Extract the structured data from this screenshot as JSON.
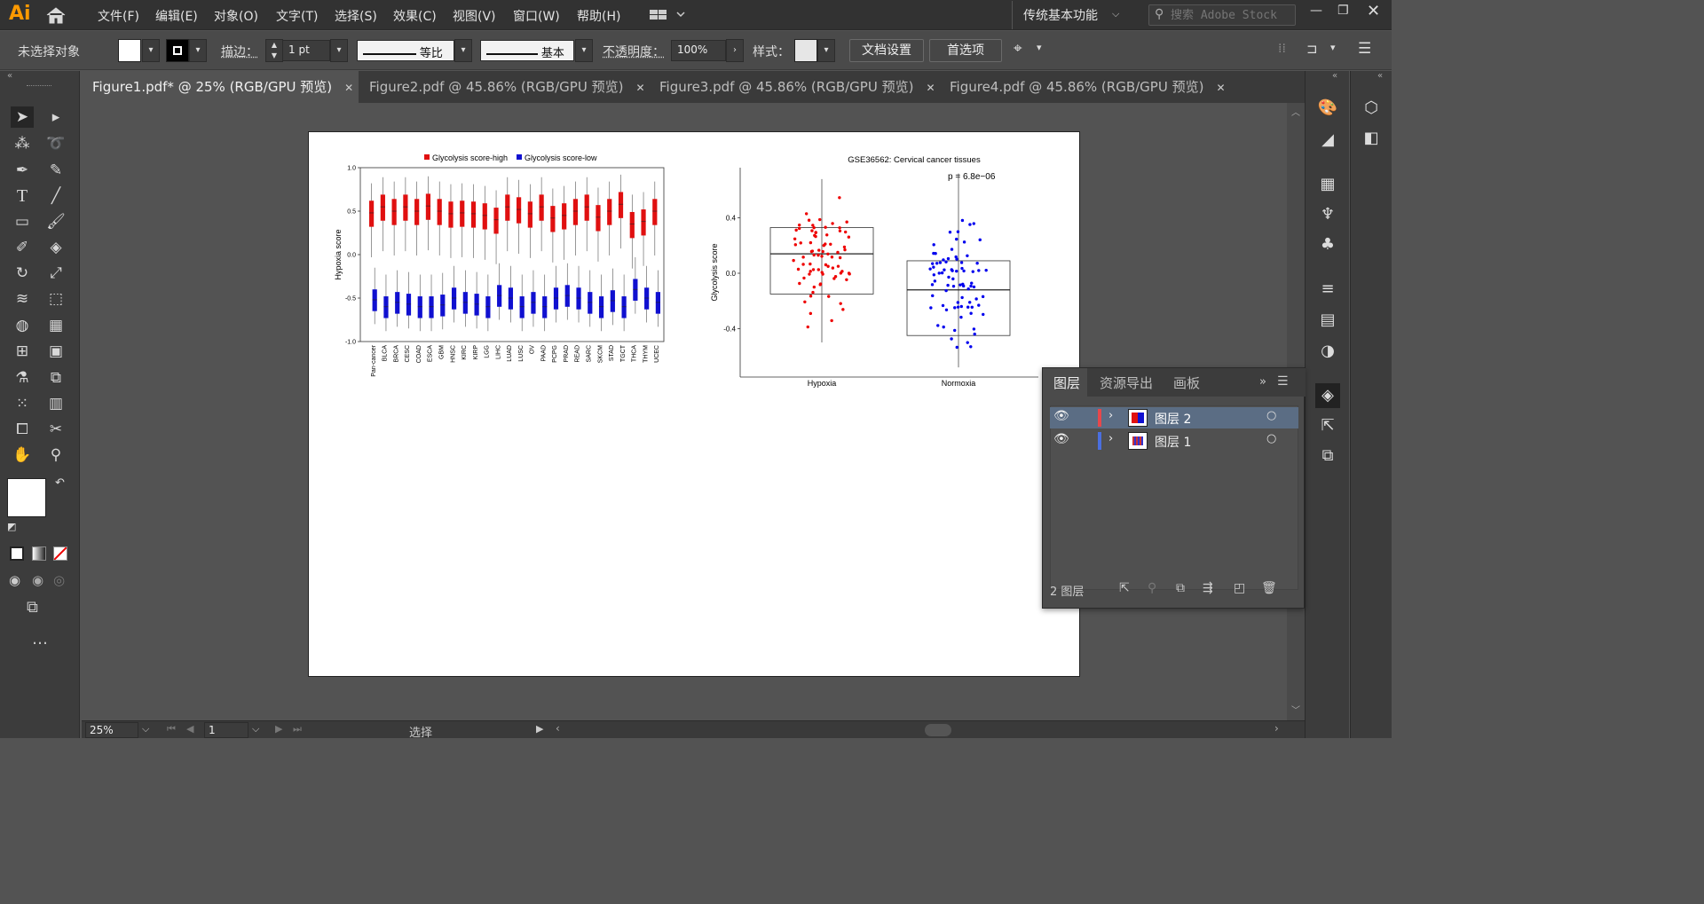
{
  "app": {
    "logo": "Ai"
  },
  "menu": [
    "文件(F)",
    "编辑(E)",
    "对象(O)",
    "文字(T)",
    "选择(S)",
    "效果(C)",
    "视图(V)",
    "窗口(W)",
    "帮助(H)"
  ],
  "workspace": "传统基本功能",
  "search": {
    "placeholder": "搜索 Adobe Stock"
  },
  "control": {
    "selection_status": "未选择对象",
    "stroke_label": "描边：",
    "stroke_weight": "1 pt",
    "stroke_profile": "等比",
    "brush": "基本",
    "opacity_label": "不透明度：",
    "opacity": "100%",
    "style_label": "样式：",
    "doc_setup": "文档设置",
    "preferences": "首选项"
  },
  "tabs": [
    {
      "label": "Figure1.pdf* @ 25% (RGB/GPU 预览)",
      "active": true
    },
    {
      "label": "Figure2.pdf @ 45.86% (RGB/GPU 预览)",
      "active": false
    },
    {
      "label": "Figure3.pdf @ 45.86% (RGB/GPU 预览)",
      "active": false
    },
    {
      "label": "Figure4.pdf @ 45.86% (RGB/GPU 预览)",
      "active": false
    }
  ],
  "layers_panel": {
    "tabs": [
      "图层",
      "资源导出",
      "画板"
    ],
    "layers": [
      {
        "name": "图层 2",
        "color": "#e8474b",
        "selected": true
      },
      {
        "name": "图层 1",
        "color": "#4a6fe0",
        "selected": false
      }
    ],
    "count": "2 图层"
  },
  "status": {
    "zoom": "25%",
    "page": "1",
    "tool": "选择"
  },
  "chart_data": [
    {
      "type": "box",
      "legend": [
        "Glycolysis score-high",
        "Glycolysis score-low"
      ],
      "colors": [
        "#e01010",
        "#1010d0"
      ],
      "ylabel": "Hypoxia score",
      "ylim": [
        -1.0,
        1.0
      ],
      "yticks": [
        "1.0",
        "0.5",
        "0.0",
        "-0.5",
        "-1.0"
      ],
      "categories": [
        "Pan-cancer",
        "BLCA",
        "BRCA",
        "CESC",
        "COAD",
        "ESCA",
        "GBM",
        "HNSC",
        "KIRC",
        "KIRP",
        "LGG",
        "LIHC",
        "LUAD",
        "LUSC",
        "OV",
        "PAAD",
        "PCPG",
        "PRAD",
        "READ",
        "SARC",
        "SKCM",
        "STAD",
        "TGCT",
        "THCA",
        "THYM",
        "UCEC"
      ],
      "high_median": [
        0.48,
        0.55,
        0.5,
        0.55,
        0.5,
        0.56,
        0.5,
        0.47,
        0.48,
        0.47,
        0.45,
        0.4,
        0.55,
        0.52,
        0.47,
        0.55,
        0.42,
        0.45,
        0.5,
        0.55,
        0.43,
        0.5,
        0.58,
        0.35,
        0.38,
        0.5
      ],
      "low_median": [
        -0.52,
        -0.6,
        -0.55,
        -0.57,
        -0.6,
        -0.6,
        -0.58,
        -0.5,
        -0.55,
        -0.57,
        -0.6,
        -0.47,
        -0.5,
        -0.6,
        -0.55,
        -0.6,
        -0.5,
        -0.47,
        -0.5,
        -0.55,
        -0.6,
        -0.53,
        -0.6,
        -0.4,
        -0.5,
        -0.55
      ]
    },
    {
      "type": "box+scatter",
      "title": "GSE36562: Cervical cancer tissues",
      "ylabel": "Glycolysis score",
      "categories": [
        "Hypoxia",
        "Normoxia"
      ],
      "colors": [
        "#ee0000",
        "#0000ee"
      ],
      "yticks": [
        "0.4",
        "0.0",
        "-0.4"
      ],
      "annotation": "p = 6.8e−06",
      "boxes": [
        {
          "name": "Hypoxia",
          "q1": -0.15,
          "median": 0.14,
          "q3": 0.33,
          "min": -0.5,
          "max": 0.68
        },
        {
          "name": "Normoxia",
          "q1": -0.45,
          "median": -0.12,
          "q3": 0.09,
          "min": -0.68,
          "max": 0.72
        }
      ]
    }
  ]
}
